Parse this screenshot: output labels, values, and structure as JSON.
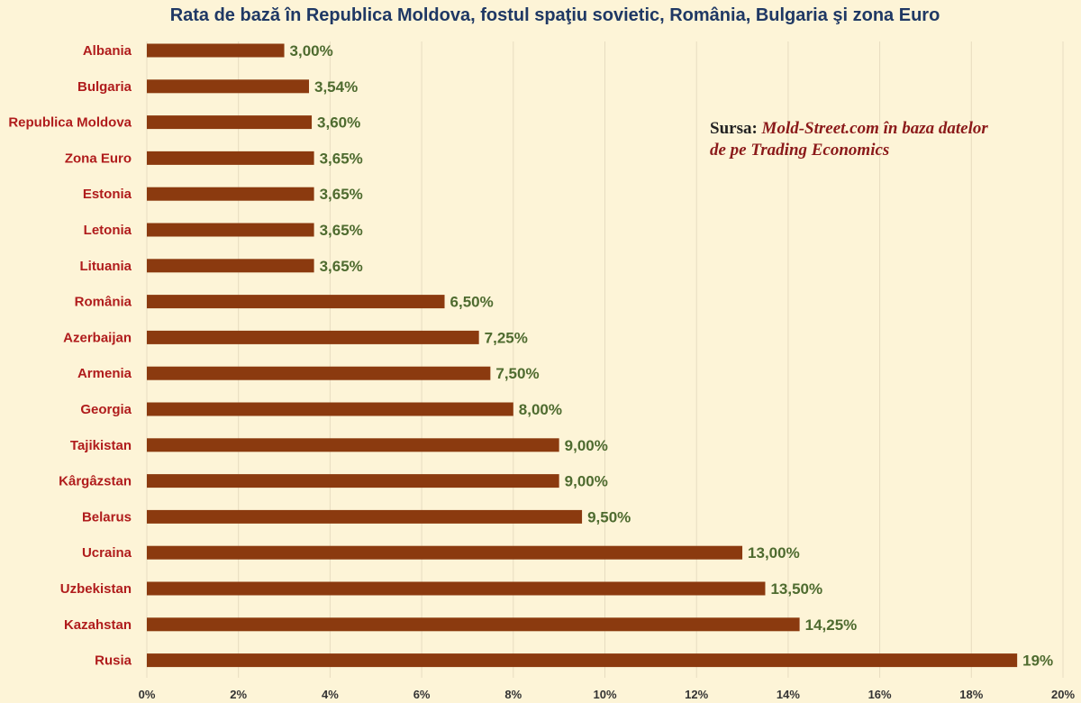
{
  "title": "Rata de bază în Republica Moldova, fostul spaţiu sovietic, România, Bulgaria şi zona Euro",
  "source": {
    "prefix": "Sursa:",
    "text": "Mold-Street.com în baza datelor de pe Trading Economics"
  },
  "colors": {
    "bar": "#8b3a0f",
    "category_label": "#b01c1c",
    "value_label": "#4e6b2f",
    "title": "#1f3864",
    "background": "#fdf4d7"
  },
  "chart_data": {
    "type": "bar",
    "orientation": "horizontal",
    "title": "Rata de bază în Republica Moldova, fostul spaţiu sovietic, România, Bulgaria şi zona Euro",
    "categories": [
      "Albania",
      "Bulgaria",
      "Republica Moldova",
      "Zona Euro",
      "Estonia",
      "Letonia",
      "Lituania",
      "România",
      "Azerbaijan",
      "Armenia",
      "Georgia",
      "Tajikistan",
      "Kârgâzstan",
      "Belarus",
      "Ucraina",
      "Uzbekistan",
      "Kazahstan",
      "Rusia"
    ],
    "values": [
      3.0,
      3.54,
      3.6,
      3.65,
      3.65,
      3.65,
      3.65,
      6.5,
      7.25,
      7.5,
      8.0,
      9.0,
      9.0,
      9.5,
      13.0,
      13.5,
      14.25,
      19.0
    ],
    "value_labels": [
      "3,00%",
      "3,54%",
      "3,60%",
      "3,65%",
      "3,65%",
      "3,65%",
      "3,65%",
      "6,50%",
      "7,25%",
      "7,50%",
      "8,00%",
      "9,00%",
      "9,00%",
      "9,50%",
      "13,00%",
      "13,50%",
      "14,25%",
      "19%"
    ],
    "xlim": [
      0,
      20
    ],
    "x_ticks": [
      0,
      2,
      4,
      6,
      8,
      10,
      12,
      14,
      16,
      18,
      20
    ],
    "x_tick_labels": [
      "0%",
      "2%",
      "4%",
      "6%",
      "8%",
      "10%",
      "12%",
      "14%",
      "16%",
      "18%",
      "20%"
    ],
    "xlabel": "",
    "ylabel": "",
    "grid": true,
    "legend": "none"
  }
}
